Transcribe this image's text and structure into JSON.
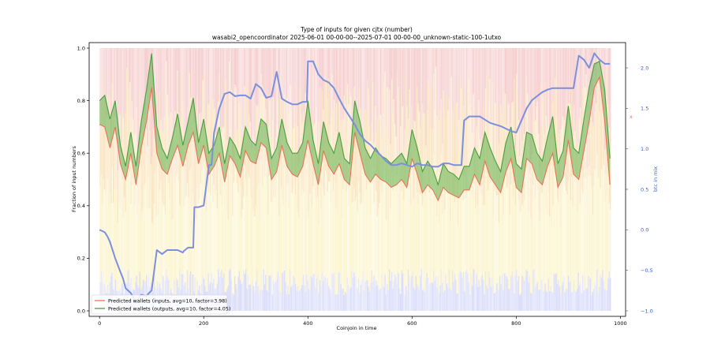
{
  "chart_data": {
    "type": "line",
    "title": "Type of inputs for given cjtx (number)",
    "subtitle": "wasabi2_opencoordinator 2025-06-01 00-00-00--2025-07-01 00-00-00_unknown-static-100-1utxo",
    "xlabel": "Coinjoin in time",
    "ylabel": "Fraction of input numbers",
    "ylabel_right": "btc in mix",
    "right_marker": "x",
    "xlim": [
      -20,
      1010
    ],
    "ylim": [
      0,
      1.0
    ],
    "ylim_right": [
      -1.05,
      2.25
    ],
    "xticks": [
      "0",
      "200",
      "400",
      "600",
      "800",
      "1000"
    ],
    "xtick_values": [
      0,
      200,
      400,
      600,
      800,
      1000
    ],
    "yticks": [
      "0.0",
      "0.2",
      "0.4",
      "0.6",
      "0.8",
      "1.0"
    ],
    "ytick_values": [
      0,
      0.2,
      0.4,
      0.6,
      0.8,
      1.0
    ],
    "yticks_right": [
      "−1.0",
      "−0.5",
      "0.0",
      "0.5",
      "1.0",
      "1.5",
      "2.0"
    ],
    "ytick_right_values": [
      -1.0,
      -0.5,
      0.0,
      0.5,
      1.0,
      1.5,
      2.0
    ],
    "grid": false,
    "legend_position": "lower-left",
    "colors": {
      "inputs": "#e6735a",
      "outputs": "#4a9e3f",
      "fill": "#63b34f",
      "btc": "#7b8fde",
      "band_red": "#f2b8b8",
      "band_orange": "#f8d9a6",
      "band_yellow": "#faf0b8",
      "band_blue": "#c9cdf7"
    },
    "series": [
      {
        "name": "Predicted wallets (inputs, avg=10, factor=3.98)",
        "axis": "left",
        "x": [
          0,
          10,
          20,
          30,
          40,
          50,
          60,
          70,
          80,
          90,
          100,
          110,
          120,
          130,
          140,
          150,
          160,
          170,
          180,
          190,
          200,
          210,
          220,
          230,
          240,
          250,
          260,
          270,
          280,
          290,
          300,
          310,
          320,
          330,
          340,
          350,
          360,
          370,
          380,
          390,
          400,
          410,
          420,
          430,
          440,
          450,
          460,
          470,
          480,
          490,
          500,
          510,
          520,
          530,
          540,
          550,
          560,
          570,
          580,
          590,
          600,
          610,
          620,
          630,
          640,
          650,
          660,
          670,
          680,
          690,
          700,
          710,
          720,
          730,
          740,
          750,
          760,
          770,
          780,
          790,
          800,
          810,
          820,
          830,
          840,
          850,
          860,
          870,
          880,
          890,
          900,
          910,
          920,
          930,
          940,
          950,
          960,
          970,
          980
        ],
        "values": [
          0.71,
          0.7,
          0.62,
          0.7,
          0.56,
          0.5,
          0.6,
          0.48,
          0.62,
          0.72,
          0.85,
          0.6,
          0.54,
          0.52,
          0.58,
          0.63,
          0.55,
          0.63,
          0.68,
          0.56,
          0.63,
          0.52,
          0.55,
          0.6,
          0.49,
          0.59,
          0.56,
          0.51,
          0.61,
          0.57,
          0.56,
          0.64,
          0.62,
          0.5,
          0.53,
          0.63,
          0.55,
          0.52,
          0.51,
          0.55,
          0.65,
          0.56,
          0.48,
          0.61,
          0.55,
          0.52,
          0.56,
          0.5,
          0.48,
          0.68,
          0.6,
          0.52,
          0.49,
          0.52,
          0.5,
          0.49,
          0.47,
          0.48,
          0.5,
          0.47,
          0.58,
          0.52,
          0.45,
          0.48,
          0.46,
          0.42,
          0.47,
          0.45,
          0.44,
          0.43,
          0.46,
          0.46,
          0.52,
          0.48,
          0.57,
          0.51,
          0.48,
          0.45,
          0.53,
          0.58,
          0.47,
          0.45,
          0.58,
          0.56,
          0.5,
          0.48,
          0.55,
          0.6,
          0.47,
          0.51,
          0.65,
          0.52,
          0.5,
          0.61,
          0.72,
          0.85,
          0.89,
          0.72,
          0.48
        ]
      },
      {
        "name": "Predicted wallets (outputs, avg=10, factor=4.05)",
        "axis": "left",
        "x": [
          0,
          10,
          20,
          30,
          40,
          50,
          60,
          70,
          80,
          90,
          100,
          110,
          120,
          130,
          140,
          150,
          160,
          170,
          180,
          190,
          200,
          210,
          220,
          230,
          240,
          250,
          260,
          270,
          280,
          290,
          300,
          310,
          320,
          330,
          340,
          350,
          360,
          370,
          380,
          390,
          400,
          410,
          420,
          430,
          440,
          450,
          460,
          470,
          480,
          490,
          500,
          510,
          520,
          530,
          540,
          550,
          560,
          570,
          580,
          590,
          600,
          610,
          620,
          630,
          640,
          650,
          660,
          670,
          680,
          690,
          700,
          710,
          720,
          730,
          740,
          750,
          760,
          770,
          780,
          790,
          800,
          810,
          820,
          830,
          840,
          850,
          860,
          870,
          880,
          890,
          900,
          910,
          920,
          930,
          940,
          950,
          960,
          970,
          980
        ],
        "values": [
          0.8,
          0.82,
          0.73,
          0.8,
          0.63,
          0.55,
          0.68,
          0.55,
          0.72,
          0.84,
          0.98,
          0.7,
          0.62,
          0.58,
          0.66,
          0.75,
          0.63,
          0.72,
          0.81,
          0.64,
          0.73,
          0.6,
          0.63,
          0.7,
          0.56,
          0.66,
          0.63,
          0.58,
          0.7,
          0.65,
          0.63,
          0.73,
          0.71,
          0.58,
          0.62,
          0.73,
          0.64,
          0.6,
          0.6,
          0.64,
          0.8,
          0.65,
          0.56,
          0.72,
          0.64,
          0.6,
          0.68,
          0.58,
          0.56,
          0.8,
          0.72,
          0.62,
          0.58,
          0.62,
          0.59,
          0.58,
          0.56,
          0.58,
          0.6,
          0.56,
          0.69,
          0.62,
          0.53,
          0.57,
          0.54,
          0.48,
          0.56,
          0.53,
          0.52,
          0.5,
          0.55,
          0.55,
          0.62,
          0.58,
          0.68,
          0.62,
          0.57,
          0.53,
          0.64,
          0.7,
          0.56,
          0.54,
          0.68,
          0.67,
          0.6,
          0.57,
          0.66,
          0.74,
          0.56,
          0.61,
          0.78,
          0.62,
          0.6,
          0.73,
          0.85,
          0.94,
          0.95,
          0.84,
          0.58
        ]
      },
      {
        "name": "",
        "axis": "right",
        "x": [
          0,
          10,
          15,
          20,
          30,
          40,
          45,
          50,
          60,
          70,
          75,
          80,
          90,
          95,
          100,
          110,
          120,
          130,
          140,
          150,
          160,
          162,
          170,
          180,
          182,
          190,
          200,
          210,
          215,
          220,
          230,
          240,
          250,
          260,
          270,
          280,
          290,
          300,
          310,
          320,
          330,
          340,
          350,
          360,
          370,
          380,
          390,
          398,
          400,
          410,
          420,
          430,
          440,
          450,
          460,
          470,
          480,
          490,
          500,
          510,
          520,
          530,
          540,
          550,
          560,
          570,
          580,
          590,
          600,
          610,
          620,
          630,
          640,
          650,
          660,
          670,
          680,
          690,
          695,
          700,
          710,
          720,
          730,
          740,
          750,
          760,
          770,
          780,
          790,
          800,
          810,
          820,
          830,
          840,
          850,
          860,
          870,
          880,
          890,
          900,
          910,
          920,
          930,
          940,
          950,
          960,
          970,
          980
        ],
        "values": [
          0.0,
          -0.03,
          -0.08,
          -0.15,
          -0.35,
          -0.52,
          -0.6,
          -0.72,
          -0.78,
          -0.9,
          -0.85,
          -0.8,
          -0.82,
          -0.78,
          -0.75,
          -0.25,
          -0.3,
          -0.25,
          -0.25,
          -0.25,
          -0.28,
          -0.26,
          -0.22,
          -0.22,
          0.28,
          0.28,
          0.3,
          0.8,
          0.8,
          1.2,
          1.5,
          1.68,
          1.7,
          1.65,
          1.66,
          1.66,
          1.62,
          1.8,
          1.75,
          1.63,
          1.65,
          1.95,
          1.62,
          1.58,
          1.55,
          1.55,
          1.58,
          1.58,
          2.08,
          2.08,
          1.92,
          1.85,
          1.82,
          1.75,
          1.62,
          1.5,
          1.4,
          1.3,
          1.18,
          1.1,
          1.05,
          0.98,
          0.92,
          0.85,
          0.8,
          0.8,
          0.82,
          0.8,
          0.78,
          0.82,
          0.8,
          0.8,
          0.78,
          0.78,
          0.82,
          0.82,
          0.8,
          0.8,
          0.8,
          1.35,
          1.4,
          1.4,
          1.4,
          1.36,
          1.32,
          1.3,
          1.28,
          1.25,
          1.22,
          1.2,
          1.35,
          1.5,
          1.6,
          1.65,
          1.7,
          1.73,
          1.75,
          1.75,
          1.75,
          1.75,
          1.75,
          2.15,
          2.1,
          2.0,
          2.18,
          2.1,
          2.05,
          2.05
        ]
      }
    ]
  }
}
